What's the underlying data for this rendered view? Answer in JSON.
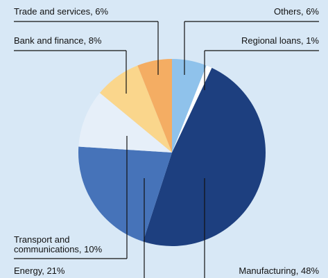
{
  "chart_data": {
    "type": "pie",
    "values": [
      6,
      1,
      48,
      21,
      10,
      8,
      6
    ],
    "value_labels": [
      "Others, 6%",
      "Regional loans, 1%",
      "Manufacturing, 48%",
      "Energy, 21%",
      "Transport and\ncommunications, 10%",
      "Bank and finance, 8%",
      "Trade and services, 6%"
    ],
    "colors": [
      "#8fc2eb",
      "#ffffff",
      "#1d3f7f",
      "#4673b9",
      "#e6eff9",
      "#fad68c",
      "#f4ad63"
    ]
  }
}
